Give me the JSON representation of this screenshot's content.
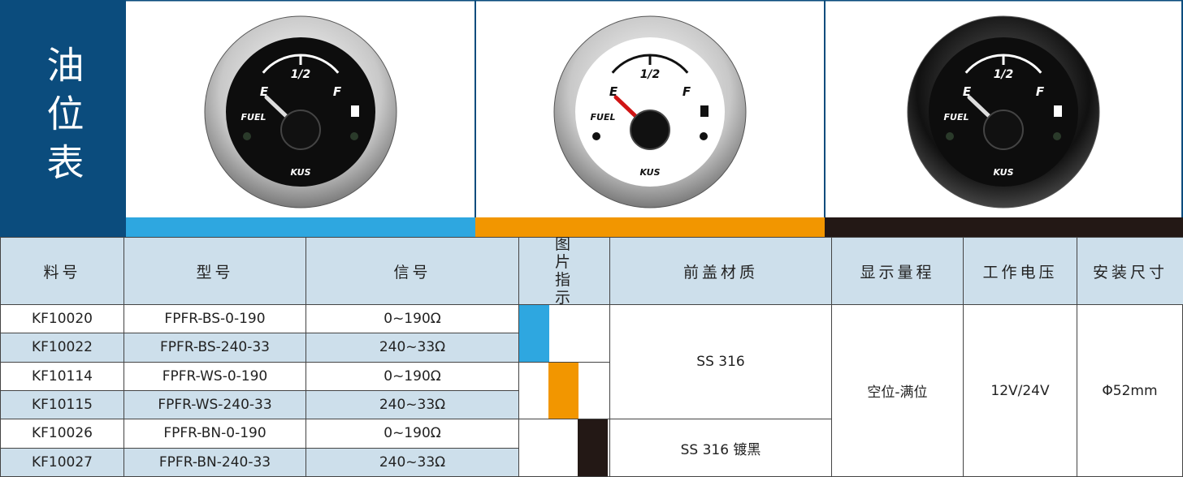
{
  "title": "油位表",
  "gauge_labels": {
    "half": "1/2",
    "empty": "E",
    "full": "F",
    "fuel": "FUEL",
    "brand": "KUS"
  },
  "table": {
    "headers": [
      "料号",
      "型号",
      "信号",
      "图片指示",
      "前盖材质",
      "显示量程",
      "工作电压",
      "安装尺寸"
    ],
    "rows": [
      [
        "KF10020",
        "FPFR-BS-0-190",
        "0~190Ω"
      ],
      [
        "KF10022",
        "FPFR-BS-240-33",
        "240~33Ω"
      ],
      [
        "KF10114",
        "FPFR-WS-0-190",
        "0~190Ω"
      ],
      [
        "KF10115",
        "FPFR-WS-240-33",
        "240~33Ω"
      ],
      [
        "KF10026",
        "FPFR-BN-0-190",
        "0~190Ω"
      ],
      [
        "KF10027",
        "FPFR-BN-240-33",
        "240~33Ω"
      ]
    ],
    "material": [
      "SS 316",
      "SS 316 镀黑"
    ],
    "range": "空位-满位",
    "voltage": "12V/24V",
    "size": "Φ52mm"
  }
}
